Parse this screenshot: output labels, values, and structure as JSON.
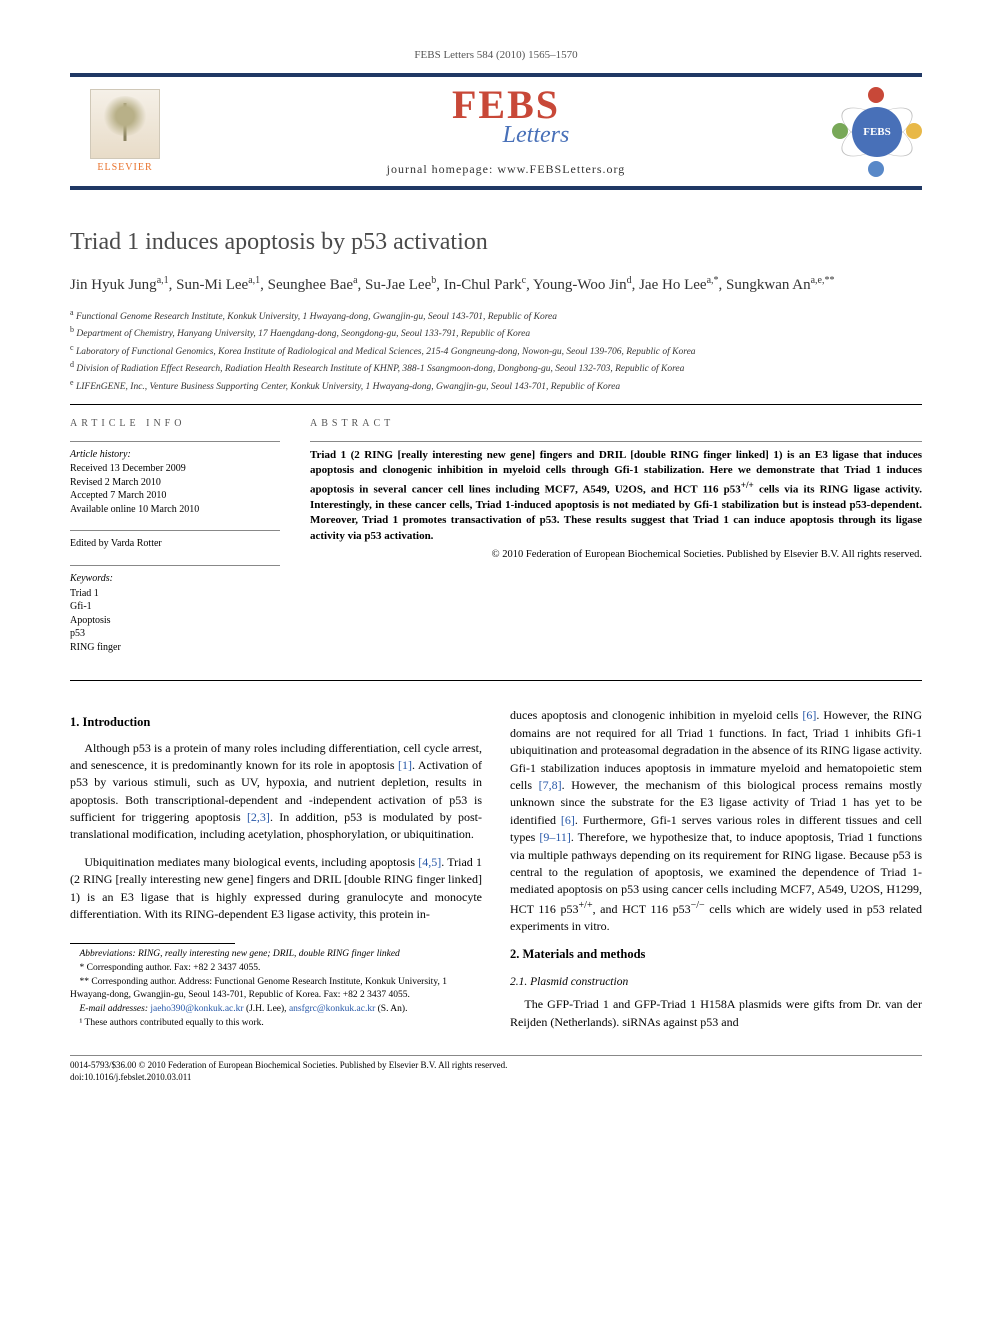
{
  "header": {
    "citation": "FEBS Letters 584 (2010) 1565–1570",
    "publisher": "ELSEVIER",
    "journal_name": "FEBS",
    "journal_sub": "Letters",
    "homepage_label": "journal homepage: ",
    "homepage_url": "www.FEBSLetters.org",
    "society_badge": "FEBS"
  },
  "article": {
    "title": "Triad 1 induces apoptosis by p53 activation",
    "authors_html": "Jin Hyuk Jung<sup>a,1</sup>, Sun-Mi Lee<sup>a,1</sup>, Seunghee Bae<sup>a</sup>, Su-Jae Lee<sup>b</sup>, In-Chul Park<sup>c</sup>, Young-Woo Jin<sup>d</sup>, Jae Ho Lee<sup>a,*</sup>, Sungkwan An<sup>a,e,**</sup>",
    "affiliations": [
      {
        "sup": "a",
        "text": "Functional Genome Research Institute, Konkuk University, 1 Hwayang-dong, Gwangjin-gu, Seoul 143-701, Republic of Korea"
      },
      {
        "sup": "b",
        "text": "Department of Chemistry, Hanyang University, 17 Haengdang-dong, Seongdong-gu, Seoul 133-791, Republic of Korea"
      },
      {
        "sup": "c",
        "text": "Laboratory of Functional Genomics, Korea Institute of Radiological and Medical Sciences, 215-4 Gongneung-dong, Nowon-gu, Seoul 139-706, Republic of Korea"
      },
      {
        "sup": "d",
        "text": "Division of Radiation Effect Research, Radiation Health Research Institute of KHNP, 388-1 Ssangmoon-dong, Dongbong-gu, Seoul 132-703, Republic of Korea"
      },
      {
        "sup": "e",
        "text": "LIFEnGENE, Inc., Venture Business Supporting Center, Konkuk University, 1 Hwayang-dong, Gwangjin-gu, Seoul 143-701, Republic of Korea"
      }
    ]
  },
  "info": {
    "section_label": "ARTICLE INFO",
    "history_label": "Article history:",
    "received": "Received 13 December 2009",
    "revised": "Revised 2 March 2010",
    "accepted": "Accepted 7 March 2010",
    "online": "Available online 10 March 2010",
    "edited_by": "Edited by Varda Rotter",
    "keywords_label": "Keywords:",
    "keywords": [
      "Triad 1",
      "Gfi-1",
      "Apoptosis",
      "p53",
      "RING finger"
    ]
  },
  "abstract": {
    "section_label": "ABSTRACT",
    "text": "Triad 1 (2 RING [really interesting new gene] fingers and DRIL [double RING finger linked] 1) is an E3 ligase that induces apoptosis and clonogenic inhibition in myeloid cells through Gfi-1 stabilization. Here we demonstrate that Triad 1 induces apoptosis in several cancer cell lines including MCF7, A549, U2OS, and HCT 116 p53+/+ cells via its RING ligase activity. Interestingly, in these cancer cells, Triad 1-induced apoptosis is not mediated by Gfi-1 stabilization but is instead p53-dependent. Moreover, Triad 1 promotes transactivation of p53. These results suggest that Triad 1 can induce apoptosis through its ligase activity via p53 activation.",
    "copyright": "© 2010 Federation of European Biochemical Societies. Published by Elsevier B.V. All rights reserved."
  },
  "body": {
    "section1_title": "1. Introduction",
    "p1": "Although p53 is a protein of many roles including differentiation, cell cycle arrest, and senescence, it is predominantly known for its role in apoptosis [1]. Activation of p53 by various stimuli, such as UV, hypoxia, and nutrient depletion, results in apoptosis. Both transcriptional-dependent and -independent activation of p53 is sufficient for triggering apoptosis [2,3]. In addition, p53 is modulated by post-translational modification, including acetylation, phosphorylation, or ubiquitination.",
    "p2": "Ubiquitination mediates many biological events, including apoptosis [4,5]. Triad 1 (2 RING [really interesting new gene] fingers and DRIL [double RING finger linked] 1) is an E3 ligase that is highly expressed during granulocyte and monocyte differentiation. With its RING-dependent E3 ligase activity, this protein in-",
    "p3": "duces apoptosis and clonogenic inhibition in myeloid cells [6]. However, the RING domains are not required for all Triad 1 functions. In fact, Triad 1 inhibits Gfi-1 ubiquitination and proteasomal degradation in the absence of its RING ligase activity. Gfi-1 stabilization induces apoptosis in immature myeloid and hematopoietic stem cells [7,8]. However, the mechanism of this biological process remains mostly unknown since the substrate for the E3 ligase activity of Triad 1 has yet to be identified [6]. Furthermore, Gfi-1 serves various roles in different tissues and cell types [9–11]. Therefore, we hypothesize that, to induce apoptosis, Triad 1 functions via multiple pathways depending on its requirement for RING ligase. Because p53 is central to the regulation of apoptosis, we examined the dependence of Triad 1-mediated apoptosis on p53 using cancer cells including MCF7, A549, U2OS, H1299, HCT 116 p53+/+, and HCT 116 p53−/− cells which are widely used in p53 related experiments in vitro.",
    "section2_title": "2. Materials and methods",
    "section21_title": "2.1. Plasmid construction",
    "p4": "The GFP-Triad 1 and GFP-Triad 1 H158A plasmids were gifts from Dr. van der Reijden (Netherlands). siRNAs against p53 and"
  },
  "footnotes": {
    "abbrev": "Abbreviations: RING, really interesting new gene; DRIL, double RING finger linked",
    "star1": "* Corresponding author. Fax: +82 2 3437 4055.",
    "star2": "** Corresponding author. Address: Functional Genome Research Institute, Konkuk University, 1 Hwayang-dong, Gwangjin-gu, Seoul 143-701, Republic of Korea. Fax: +82 2 3437 4055.",
    "emails_label": "E-mail addresses: ",
    "email1": "jaeho390@konkuk.ac.kr",
    "email1_who": " (J.H. Lee), ",
    "email2": "ansfgrc@konkuk.ac.kr",
    "email2_who": " (S. An).",
    "note1": "¹ These authors contributed equally to this work."
  },
  "footer": {
    "line1": "0014-5793/$36.00 © 2010 Federation of European Biochemical Societies. Published by Elsevier B.V. All rights reserved.",
    "line2": "doi:10.1016/j.febslet.2010.03.011"
  },
  "colors": {
    "banner_border": "#203864",
    "febs_red": "#c84838",
    "febs_blue": "#4870b8",
    "elsevier_orange": "#e8722c",
    "link": "#2858a8",
    "text": "#000000",
    "background": "#ffffff"
  }
}
